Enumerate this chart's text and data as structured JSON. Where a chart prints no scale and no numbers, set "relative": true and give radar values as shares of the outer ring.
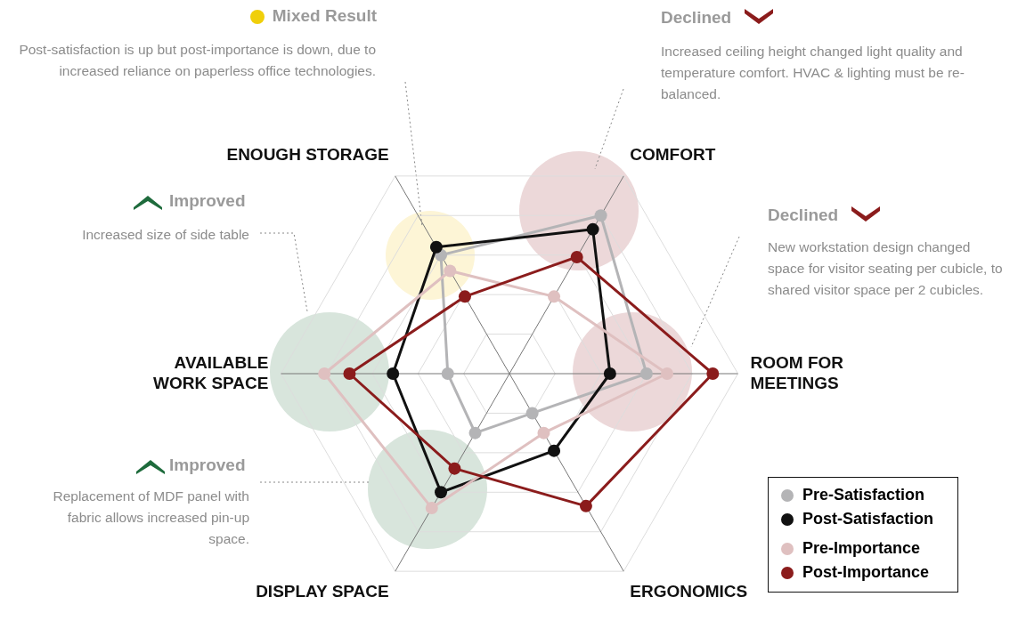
{
  "chart_data": {
    "type": "radar",
    "relative": true,
    "grid": true,
    "legend": "bottom right",
    "marker": "circle",
    "line_style": "solid",
    "categories": [
      "COMFORT",
      "ROOM FOR MEETINGS",
      "ERGONOMICS",
      "DISPLAY SPACE",
      "AVAILABLE WORK SPACE",
      "ENOUGH STORAGE"
    ],
    "series": [
      {
        "name": "Pre-Satisfaction",
        "color": "#b4b4b6",
        "values": [
          0.8,
          0.6,
          0.2,
          0.3,
          0.27,
          0.6
        ]
      },
      {
        "name": "Post-Satisfaction",
        "color": "#111111",
        "values": [
          0.73,
          0.44,
          0.39,
          0.6,
          0.51,
          0.64
        ]
      },
      {
        "name": "Pre-Importance",
        "color": "#dfc0c0",
        "values": [
          0.39,
          0.69,
          0.3,
          0.68,
          0.81,
          0.52
        ]
      },
      {
        "name": "Post-Importance",
        "color": "#8b1c1c",
        "values": [
          0.59,
          0.89,
          0.67,
          0.48,
          0.7,
          0.39
        ]
      }
    ],
    "annotations": [
      "Mixed Result",
      "Post-satisfaction is up but post-importance is down, due to increased reliance on paperless office technologies.",
      "Declined",
      "Increased ceiling height changed light quality and temperature comfort. HVAC & lighting must be re-balanced.",
      "Improved",
      "Increased size of side table",
      "Declined",
      "New workstation design changed space for visitor seating per cubicle, to shared visitor space per 2 cubicles.",
      "Improved",
      "Replacement of MDF panel with fabric allows increased pin-up space."
    ]
  }
}
